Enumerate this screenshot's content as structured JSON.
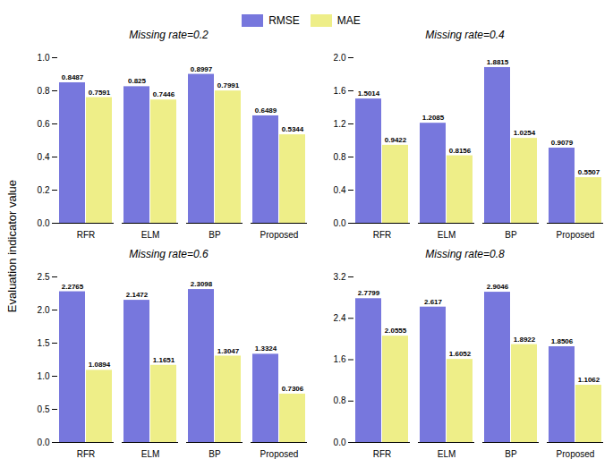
{
  "chart_data": [
    {
      "type": "bar",
      "title": "Missing rate=0.2",
      "ylabel": "Evaluation indicator value",
      "categories": [
        "RFR",
        "ELM",
        "BP",
        "Proposed"
      ],
      "series": [
        {
          "name": "RMSE",
          "color": "#7777dd",
          "values": [
            0.8487,
            0.825,
            0.8997,
            0.6489
          ]
        },
        {
          "name": "MAE",
          "color": "#eeee88",
          "values": [
            0.7591,
            0.7446,
            0.7991,
            0.5344
          ]
        }
      ],
      "ylim": [
        0.0,
        1.0
      ],
      "yticks": [
        {
          "value": 0.0,
          "label": "0.0"
        },
        0.2,
        0.4,
        0.6,
        0.8,
        {
          "value": 1.0,
          "label": "1.0"
        }
      ],
      "grid": false,
      "data_labels": true
    },
    {
      "type": "bar",
      "title": "Missing rate=0.4",
      "categories": [
        "RFR",
        "ELM",
        "BP",
        "Proposed"
      ],
      "series": [
        {
          "name": "RMSE",
          "color": "#7777dd",
          "values": [
            1.5014,
            1.2085,
            1.8815,
            0.9079
          ]
        },
        {
          "name": "MAE",
          "color": "#eeee88",
          "values": [
            0.9422,
            0.8156,
            1.0254,
            0.5507
          ]
        }
      ],
      "ylim": [
        0.0,
        2.0
      ],
      "yticks": [
        {
          "value": 0.0,
          "label": "0.0"
        },
        0.4,
        0.8,
        1.2,
        1.6,
        {
          "value": 2.0,
          "label": "2.0"
        }
      ],
      "grid": false,
      "data_labels": true
    },
    {
      "type": "bar",
      "title": "Missing rate=0.6",
      "categories": [
        "RFR",
        "ELM",
        "BP",
        "Proposed"
      ],
      "series": [
        {
          "name": "RMSE",
          "color": "#7777dd",
          "values": [
            2.2765,
            2.1472,
            2.3098,
            1.3324
          ]
        },
        {
          "name": "MAE",
          "color": "#eeee88",
          "values": [
            1.0894,
            1.1651,
            1.3047,
            0.7306
          ]
        }
      ],
      "ylim": [
        0.0,
        2.5
      ],
      "yticks": [
        {
          "value": 0.0,
          "label": "0.0"
        },
        0.5,
        {
          "value": 1.0,
          "label": "1.0"
        },
        1.5,
        {
          "value": 2.0,
          "label": "2.0"
        },
        2.5
      ],
      "grid": false,
      "data_labels": true
    },
    {
      "type": "bar",
      "title": "Missing rate=0.8",
      "categories": [
        "RFR",
        "ELM",
        "BP",
        "Proposed"
      ],
      "series": [
        {
          "name": "RMSE",
          "color": "#7777dd",
          "values": [
            2.7799,
            2.617,
            2.9046,
            1.8506
          ]
        },
        {
          "name": "MAE",
          "color": "#eeee88",
          "values": [
            2.0555,
            1.6052,
            1.8922,
            1.1062
          ]
        }
      ],
      "ylim": [
        0.0,
        3.2
      ],
      "yticks": [
        {
          "value": 0.0,
          "label": "0.0"
        },
        0.8,
        1.6,
        2.4,
        3.2
      ],
      "grid": false,
      "data_labels": true
    }
  ]
}
